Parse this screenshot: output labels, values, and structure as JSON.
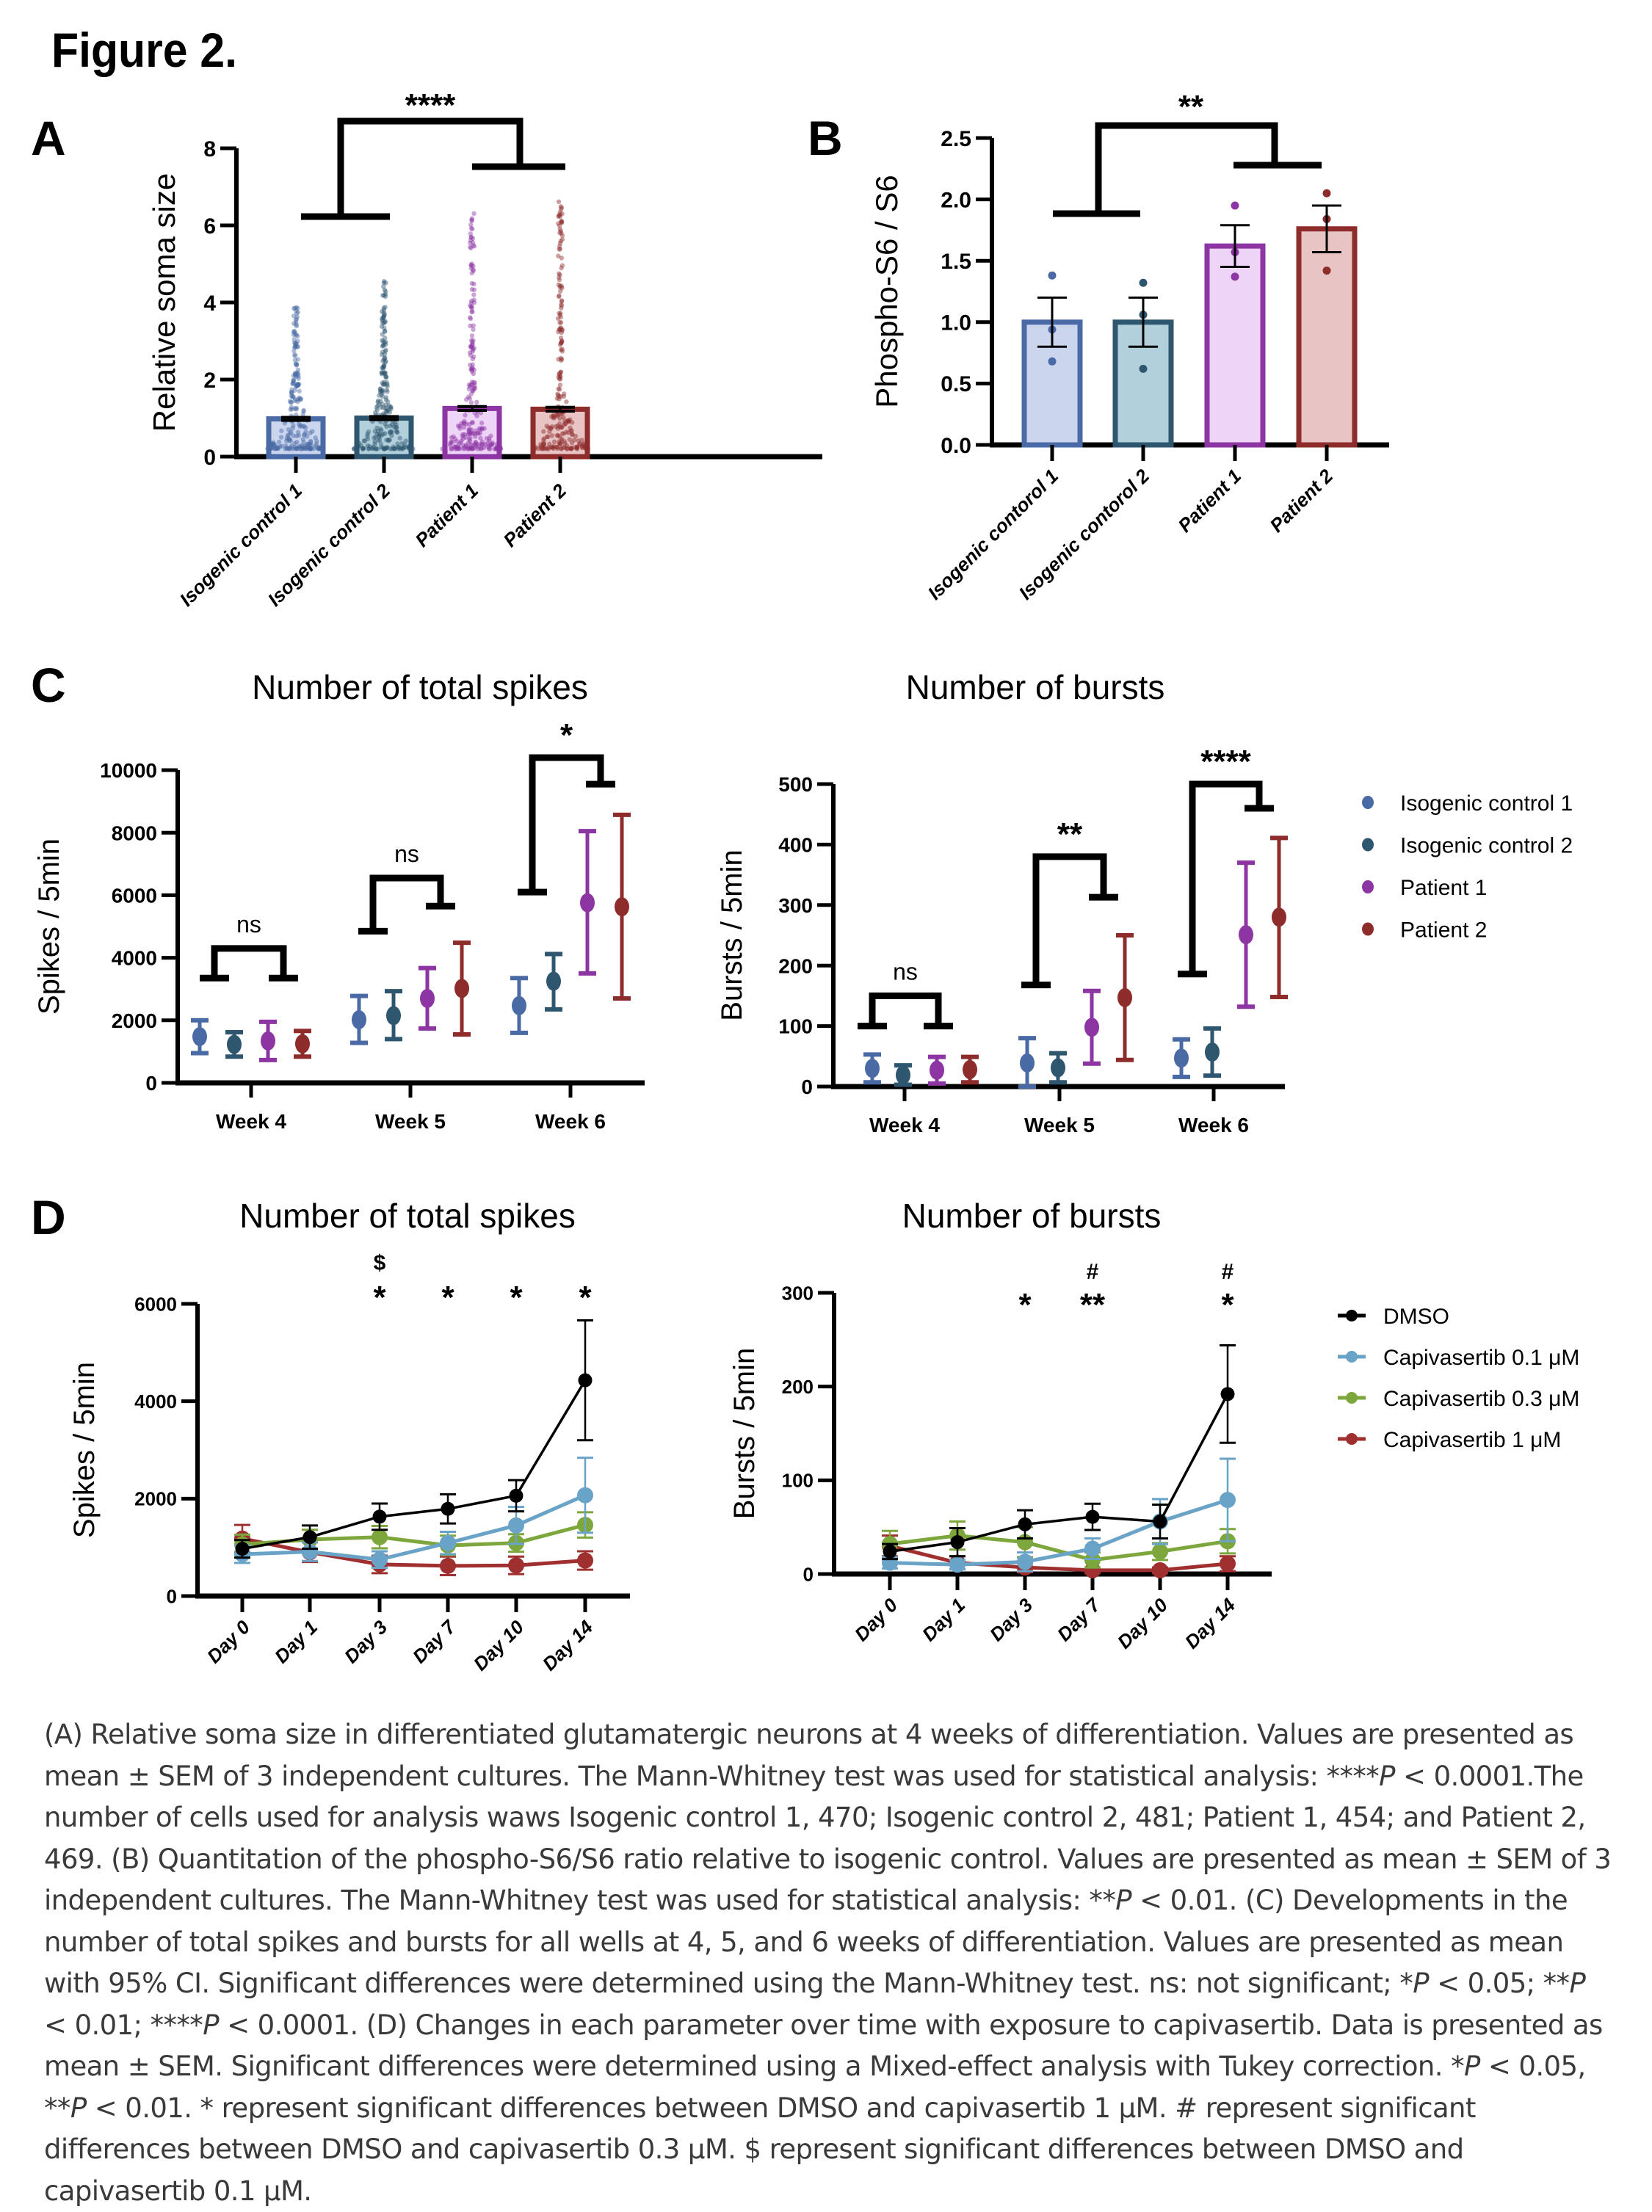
{
  "figure_title": "Figure 2.",
  "panels": {
    "A": "A",
    "B": "B",
    "C": "C",
    "D": "D"
  },
  "colors": {
    "iso1": "#4a6aa5",
    "iso1_fill": "#cbd6ee",
    "iso2": "#2f566f",
    "iso2_fill": "#b2cfdc",
    "pat1": "#8c35a3",
    "pat1_fill": "#eed4f7",
    "pat2": "#8e2c2c",
    "pat2_fill": "#e8c4c4",
    "dmso": "#000000",
    "cap01": "#6aa3c8",
    "cap03": "#7da63c",
    "cap1": "#a02f2f"
  },
  "chart_data": [
    {
      "id": "A",
      "type": "bar",
      "title": "",
      "xlabel": "",
      "ylabel": "Relative soma size",
      "ylim": [
        0,
        8
      ],
      "yticks": [
        "0",
        "2",
        "4",
        "6",
        "8"
      ],
      "categories": [
        "Isogenic control 1",
        "Isogenic control 2",
        "Patient 1",
        "Patient 2"
      ],
      "values": [
        0.98,
        1.0,
        1.25,
        1.23
      ],
      "sem": [
        0.04,
        0.04,
        0.05,
        0.05
      ],
      "n_points": [
        470,
        481,
        454,
        469
      ],
      "max_points": [
        3.9,
        4.55,
        6.5,
        6.7
      ],
      "significance": {
        "label": "****",
        "groups": [
          "controls",
          "patients"
        ]
      }
    },
    {
      "id": "B",
      "type": "bar",
      "title": "",
      "xlabel": "",
      "ylabel": "Phospho-S6 / S6",
      "ylim": [
        0,
        2.5
      ],
      "yticks": [
        "0.0",
        "0.5",
        "1.0",
        "1.5",
        "2.0",
        "2.5"
      ],
      "categories": [
        "Isogenic contorol 1",
        "Isogenic contorol 2",
        "Patient 1",
        "Patient 2"
      ],
      "values": [
        1.0,
        1.0,
        1.62,
        1.76
      ],
      "sem": [
        0.2,
        0.2,
        0.17,
        0.19
      ],
      "points": [
        [
          1.38,
          0.94,
          0.68
        ],
        [
          1.32,
          1.06,
          0.62
        ],
        [
          1.95,
          1.57,
          1.37
        ],
        [
          2.05,
          1.84,
          1.42
        ]
      ],
      "significance": {
        "label": "**",
        "groups": [
          "controls",
          "patients"
        ]
      }
    },
    {
      "id": "C-spikes",
      "type": "scatter",
      "title": "Number of total spikes",
      "xlabel": "",
      "ylabel": "Spikes / 5min",
      "ylim": [
        0,
        10000
      ],
      "yticks": [
        "0",
        "2000",
        "4000",
        "6000",
        "8000",
        "10000"
      ],
      "categories": [
        "Week 4",
        "Week 5",
        "Week 6"
      ],
      "series": [
        {
          "name": "Isogenic control 1",
          "values": [
            1480,
            2020,
            2470
          ],
          "ci_low": [
            950,
            1280,
            1600
          ],
          "ci_high": [
            2000,
            2780,
            3350
          ]
        },
        {
          "name": "Isogenic control 2",
          "values": [
            1230,
            2150,
            3250
          ],
          "ci_low": [
            840,
            1400,
            2350
          ],
          "ci_high": [
            1620,
            2930,
            4120
          ]
        },
        {
          "name": "Patient 1",
          "values": [
            1340,
            2700,
            5760
          ],
          "ci_low": [
            730,
            1740,
            3500
          ],
          "ci_high": [
            1950,
            3670,
            8050
          ]
        },
        {
          "name": "Patient 2",
          "values": [
            1250,
            3020,
            5630
          ],
          "ci_low": [
            840,
            1550,
            2700
          ],
          "ci_high": [
            1660,
            4480,
            8570
          ]
        }
      ],
      "significance": [
        "ns",
        "ns",
        "*"
      ]
    },
    {
      "id": "C-bursts",
      "type": "scatter",
      "title": "Number of bursts",
      "xlabel": "",
      "ylabel": "Bursts / 5min",
      "ylim": [
        0,
        500
      ],
      "yticks": [
        "0",
        "100",
        "200",
        "300",
        "400",
        "500"
      ],
      "categories": [
        "Week 4",
        "Week 5",
        "Week 6"
      ],
      "series": [
        {
          "name": "Isogenic control 1",
          "values": [
            30,
            39,
            47
          ],
          "ci_low": [
            7,
            0,
            16
          ],
          "ci_high": [
            53,
            80,
            78
          ]
        },
        {
          "name": "Isogenic control 2",
          "values": [
            19,
            31,
            57
          ],
          "ci_low": [
            3,
            7,
            18
          ],
          "ci_high": [
            35,
            55,
            96
          ]
        },
        {
          "name": "Patient 1",
          "values": [
            27,
            98,
            251
          ],
          "ci_low": [
            5,
            38,
            132
          ],
          "ci_high": [
            49,
            158,
            370
          ]
        },
        {
          "name": "Patient 2",
          "values": [
            28,
            147,
            280
          ],
          "ci_low": [
            7,
            44,
            148
          ],
          "ci_high": [
            49,
            250,
            411
          ]
        }
      ],
      "significance": [
        "ns",
        "**",
        "****"
      ],
      "legend": [
        "Isogenic control 1",
        "Isogenic control 2",
        "Patient 1",
        "Patient 2"
      ],
      "legend_placement": "right"
    },
    {
      "id": "D-spikes",
      "type": "line",
      "title": "Number of total spikes",
      "xlabel": "",
      "ylabel": "Spikes / 5min",
      "ylim": [
        0,
        6000
      ],
      "yticks": [
        "0",
        "2000",
        "4000",
        "6000"
      ],
      "categories": [
        "Day 0",
        "Day 1",
        "Day 3",
        "Day 7",
        "Day 10",
        "Day 14"
      ],
      "series": [
        {
          "name": "DMSO",
          "values": [
            970,
            1210,
            1630,
            1790,
            2060,
            4430
          ],
          "sem": [
            180,
            240,
            270,
            300,
            320,
            1230
          ]
        },
        {
          "name": "Capivasertib 0.1 μM",
          "values": [
            860,
            910,
            750,
            1090,
            1450,
            2070
          ],
          "sem": [
            180,
            190,
            170,
            230,
            380,
            770
          ]
        },
        {
          "name": "Capivasertib 0.3 μM",
          "values": [
            1060,
            1160,
            1210,
            1040,
            1090,
            1460
          ],
          "sem": [
            200,
            200,
            230,
            200,
            180,
            260
          ]
        },
        {
          "name": "Capivasertib 1 μM",
          "values": [
            1180,
            900,
            650,
            620,
            630,
            730
          ],
          "sem": [
            280,
            200,
            180,
            190,
            180,
            190
          ]
        }
      ],
      "annotations": [
        {
          "category": "Day 3",
          "marks": [
            "$",
            "*"
          ]
        },
        {
          "category": "Day 7",
          "marks": [
            "*"
          ]
        },
        {
          "category": "Day 10",
          "marks": [
            "*"
          ]
        },
        {
          "category": "Day 14",
          "marks": [
            "*"
          ]
        }
      ]
    },
    {
      "id": "D-bursts",
      "type": "line",
      "title": "Number of bursts",
      "xlabel": "",
      "ylabel": "Bursts / 5min",
      "ylim": [
        0,
        300
      ],
      "yticks": [
        "0",
        "100",
        "200",
        "300"
      ],
      "categories": [
        "Day 0",
        "Day 1",
        "Day 3",
        "Day 7",
        "Day 10",
        "Day 14"
      ],
      "series": [
        {
          "name": "DMSO",
          "values": [
            24,
            34,
            53,
            61,
            56,
            192
          ],
          "sem": [
            8,
            15,
            15,
            14,
            18,
            52
          ]
        },
        {
          "name": "Capivasertib 0.1 μM",
          "values": [
            12,
            10,
            13,
            27,
            56,
            79
          ],
          "sem": [
            6,
            5,
            10,
            11,
            24,
            44
          ]
        },
        {
          "name": "Capivasertib 0.3 μM",
          "values": [
            32,
            41,
            34,
            15,
            24,
            35
          ],
          "sem": [
            14,
            15,
            16,
            8,
            9,
            13
          ]
        },
        {
          "name": "Capivasertib 1 μM",
          "values": [
            30,
            12,
            7,
            4,
            4,
            11
          ],
          "sem": [
            11,
            7,
            5,
            3,
            3,
            8
          ]
        }
      ],
      "annotations": [
        {
          "category": "Day 3",
          "marks": [
            "*"
          ]
        },
        {
          "category": "Day 7",
          "marks": [
            "#",
            "**"
          ]
        },
        {
          "category": "Day 14",
          "marks": [
            "#",
            "*"
          ]
        }
      ],
      "legend": [
        "DMSO",
        "Capivasertib 0.1 μM",
        "Capivasertib 0.3 μM",
        "Capivasertib 1 μM"
      ],
      "legend_placement": "right"
    }
  ],
  "caption": [
    "(A) Relative soma size in differentiated glutamatergic neurons at 4 weeks of differentiation. Values are presented as mean ± SEM of 3 independent cultures. The Mann-Whitney test was used for statistical analysis: ****",
    "P",
    " < 0.0001.The number of cells used for analysis waws Isogenic control 1, 470; Isogenic control 2, 481; Patient 1, 454; and Patient 2, 469. (B) Quantitation of the phospho-S6/S6 ratio relative to isogenic control. Values are presented as mean ± SEM of 3 independent cultures. The Mann-Whitney test was used for statistical analysis: **",
    "P",
    " < 0.01. (C) Developments in the number of total spikes and bursts for all wells at 4, 5, and 6 weeks of differentiation. Values are presented as mean with 95% CI. Significant differences were determined using the Mann-Whitney test. ns: not significant; *",
    "P",
    " < 0.05; **",
    "P",
    " < 0.01; ****",
    "P",
    " < 0.0001. (D) Changes in each parameter over time with exposure to capivasertib. Data is presented as mean ± SEM. Significant differences were determined using a Mixed-effect analysis with Tukey correction. *",
    "P",
    " < 0.05, **",
    "P",
    " < 0.01. * represent significant differences between DMSO and capivasertib 1 μM. # represent significant differences between DMSO and capivasertib 0.3 μM. $ represent significant differences between DMSO and capivasertib 0.1 μM."
  ]
}
